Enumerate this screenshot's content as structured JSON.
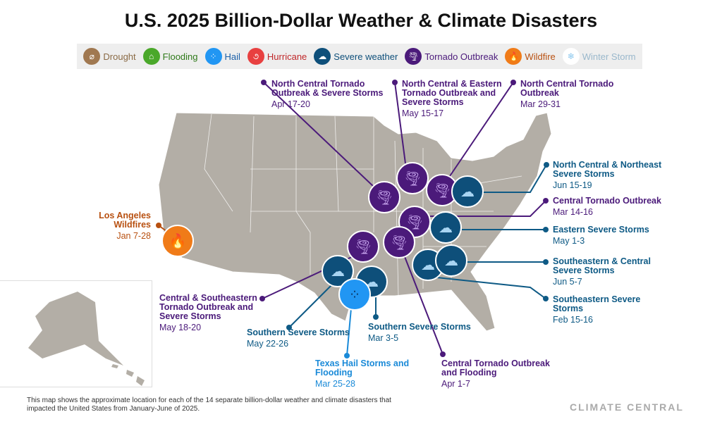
{
  "title": "U.S. 2025 Billion-Dollar Weather & Climate Disasters",
  "legend": [
    {
      "label": "Drought",
      "icon": "drought-icon",
      "color": "#a07850",
      "text_color": "#8a6a45"
    },
    {
      "label": "Flooding",
      "icon": "flooding-icon",
      "color": "#4aa82a",
      "text_color": "#2f7a1a"
    },
    {
      "label": "Hail",
      "icon": "hail-icon",
      "color": "#2196f3",
      "text_color": "#1a5fa8"
    },
    {
      "label": "Hurricane",
      "icon": "hurricane-icon",
      "color": "#e84040",
      "text_color": "#c0282a"
    },
    {
      "label": "Severe weather",
      "icon": "severe-weather-icon",
      "color": "#0e4f7a",
      "text_color": "#0e4f7a"
    },
    {
      "label": "Tornado Outbreak",
      "icon": "tornado-icon",
      "color": "#4b1a7a",
      "text_color": "#4b1a7a"
    },
    {
      "label": "Wildfire",
      "icon": "wildfire-icon",
      "color": "#f07b18",
      "text_color": "#b85010"
    },
    {
      "label": "Winter Storm",
      "icon": "winter-storm-icon",
      "color": "#ffffff",
      "text_color": "#9ab8cc"
    }
  ],
  "events": [
    {
      "name": "North Central Tornado Outbreak & Severe Storms",
      "dates": "Apr 17-20",
      "type": "tornado"
    },
    {
      "name": "North Central & Eastern Tornado Outbreak and Severe Storms",
      "dates": "May 15-17",
      "type": "tornado"
    },
    {
      "name": "North Central Tornado Outbreak",
      "dates": "Mar 29-31",
      "type": "tornado"
    },
    {
      "name": "North Central & Northeast Severe Storms",
      "dates": "Jun 15-19",
      "type": "severe"
    },
    {
      "name": "Central Tornado Outbreak",
      "dates": "Mar 14-16",
      "type": "tornado"
    },
    {
      "name": "Eastern Severe Storms",
      "dates": "May 1-3",
      "type": "severe"
    },
    {
      "name": "Southeastern & Central Severe Storms",
      "dates": "Jun 5-7",
      "type": "severe"
    },
    {
      "name": "Southeastern Severe Storms",
      "dates": "Feb 15-16",
      "type": "severe"
    },
    {
      "name": "Los Angeles Wildfires",
      "dates": "Jan 7-28",
      "type": "wildfire"
    },
    {
      "name": "Central & Southeastern Tornado Outbreak and Severe Storms",
      "dates": "May 18-20",
      "type": "tornado"
    },
    {
      "name": "Southern Severe Storms",
      "dates": "May 22-26",
      "type": "severe"
    },
    {
      "name": "Texas Hail Storms and Flooding",
      "dates": "Mar 25-28",
      "type": "hail"
    },
    {
      "name": "Southern Severe Storms",
      "dates": "Mar 3-5",
      "type": "severe"
    },
    {
      "name": "Central Tornado Outbreak and Flooding",
      "dates": "Apr 1-7",
      "type": "tornado"
    }
  ],
  "footnote": "This map shows the approximate location for each of the 14 separate billion-dollar weather and climate disasters that impacted the United States from January-June of 2025.",
  "logo": "CLIMATE CENTRAL"
}
